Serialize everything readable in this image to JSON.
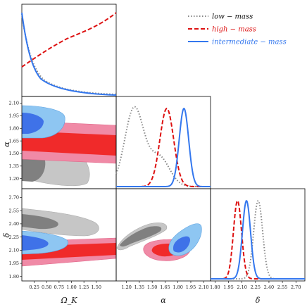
{
  "chart_data": {
    "type": "corner",
    "parameters": [
      "Ω_K",
      "α",
      "δ"
    ],
    "axis_labels": {
      "omega_k": "Ω_K",
      "alpha": "α",
      "delta": "δ"
    },
    "ranges": {
      "omega_k": [
        0.0,
        1.9
      ],
      "alpha": [
        1.08,
        2.18
      ],
      "delta": [
        1.75,
        2.8
      ]
    },
    "ticks": {
      "omega_k": [
        "0.25",
        "0.50",
        "0.75",
        "1.00",
        "1.25",
        "1.50"
      ],
      "alpha": [
        "1.20",
        "1.35",
        "1.50",
        "1.65",
        "1.80",
        "1.95",
        "2.10"
      ],
      "delta": [
        "1.80",
        "1.95",
        "2.10",
        "2.25",
        "2.40",
        "2.55",
        "2.70"
      ],
      "alpha_row": [
        "1.20",
        "1.35",
        "1.50",
        "1.65",
        "1.80",
        "1.95",
        "2.10"
      ],
      "delta_row": [
        "1.80",
        "1.95",
        "2.10",
        "2.25",
        "2.40",
        "2.55",
        "2.70"
      ]
    },
    "legend": {
      "placement": "top-right",
      "entries": [
        "low − mass",
        "high − mass",
        "intermediate − mass"
      ]
    },
    "colors": {
      "low_mass": "#888888",
      "high_mass": "#dd1111",
      "intermediate_mass": "#3377ee",
      "high_mass_fill_outer": "#f08aa6",
      "high_mass_fill_inner": "#f02a2a",
      "intermediate_mass_fill_outer": "#8ec6f2",
      "intermediate_mass_fill_inner": "#3f72e8",
      "low_mass_fill_outer": "#c6c6c6",
      "low_mass_fill_inner": "#808080"
    },
    "series": [
      {
        "name": "low − mass",
        "style": "dotted",
        "omega_k_mean": 0.0,
        "alpha_mean": 1.29,
        "alpha_sd": 0.15,
        "delta_mean": 2.28,
        "delta_sd": 0.05
      },
      {
        "name": "high − mass",
        "style": "dashed",
        "omega_k_trend": "increasing",
        "alpha_mean": 1.67,
        "alpha_sd": 0.08,
        "delta_mean": 2.05,
        "delta_sd": 0.045
      },
      {
        "name": "intermediate − mass",
        "style": "solid",
        "omega_k_mean": 0.0,
        "alpha_mean": 1.87,
        "alpha_sd": 0.055,
        "delta_mean": 2.15,
        "delta_sd": 0.045
      }
    ]
  }
}
